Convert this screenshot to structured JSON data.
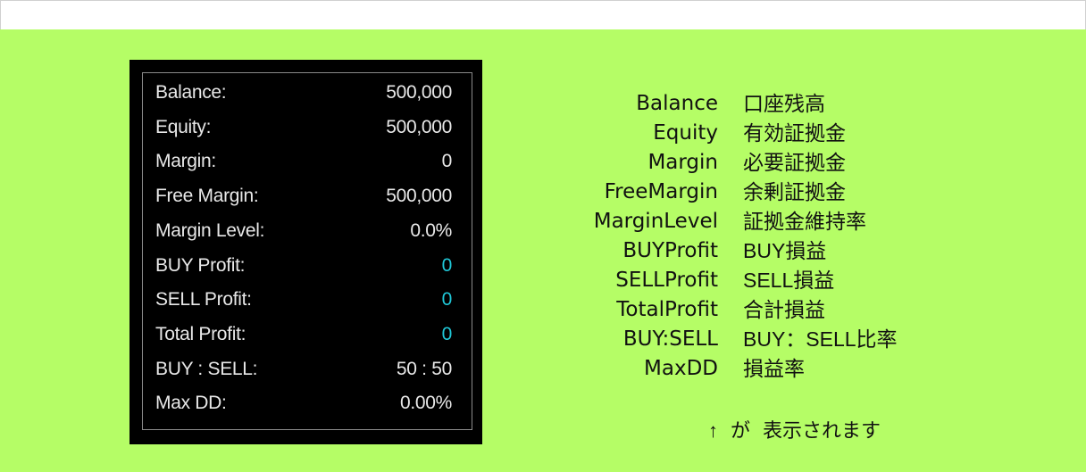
{
  "colors": {
    "background": "#b5fd66",
    "panel": "#000000",
    "profit_value": "#20c8d8",
    "text": "#e8e8e8"
  },
  "panel": {
    "rows": [
      {
        "label": "Balance:",
        "value": "500,000",
        "highlight": false
      },
      {
        "label": "Equity:",
        "value": "500,000",
        "highlight": false
      },
      {
        "label": "Margin:",
        "value": "0",
        "highlight": false
      },
      {
        "label": "Free Margin:",
        "value": "500,000",
        "highlight": false
      },
      {
        "label": "Margin Level:",
        "value": "0.0%",
        "highlight": false
      },
      {
        "label": "BUY Profit:",
        "value": "0",
        "highlight": true
      },
      {
        "label": "SELL Profit:",
        "value": "0",
        "highlight": true
      },
      {
        "label": "Total Profit:",
        "value": "0",
        "highlight": true
      },
      {
        "label": "BUY : SELL:",
        "value": "50 : 50",
        "highlight": false
      },
      {
        "label": "Max DD:",
        "value": "0.00%",
        "highlight": false
      }
    ]
  },
  "legend": {
    "items": [
      {
        "en": "Balance",
        "jp": "口座残高"
      },
      {
        "en": "Equity",
        "jp": "有効証拠金"
      },
      {
        "en": "Margin",
        "jp": "必要証拠金"
      },
      {
        "en": "FreeMargin",
        "jp": "余剰証拠金"
      },
      {
        "en": "MarginLevel",
        "jp": "証拠金維持率"
      },
      {
        "en": "BUYProfit",
        "jp": "BUY損益"
      },
      {
        "en": "SELLProfit",
        "jp": "SELL損益"
      },
      {
        "en": "TotalProfit",
        "jp": "合計損益"
      },
      {
        "en": "BUY:SELL",
        "jp": "BUY：SELL比率"
      },
      {
        "en": "MaxDD",
        "jp": "損益率"
      }
    ],
    "footer": {
      "arrow": "↑",
      "particle": "が",
      "text": "表示されます"
    }
  }
}
